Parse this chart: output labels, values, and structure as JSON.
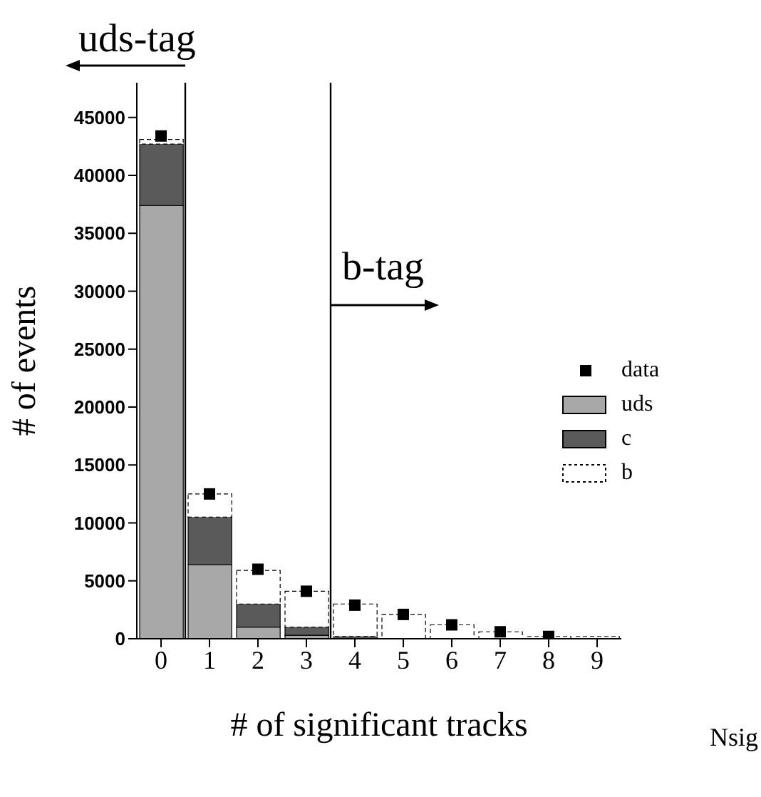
{
  "chart_data": {
    "type": "bar",
    "stacked": true,
    "xlabel": "# of significant tracks",
    "ylabel": "# of events",
    "x": [
      0,
      1,
      2,
      3,
      4,
      5,
      6,
      7,
      8,
      9
    ],
    "xlim": [
      -0.5,
      9.5
    ],
    "xticks": [
      0,
      1,
      2,
      3,
      4,
      5,
      6,
      7,
      8,
      9
    ],
    "ylim": [
      0,
      48000
    ],
    "yticks": [
      0,
      5000,
      10000,
      15000,
      20000,
      25000,
      30000,
      35000,
      40000,
      45000
    ],
    "series": [
      {
        "name": "data",
        "type": "scatter",
        "color": "#000000",
        "marker": "square",
        "values": [
          43400,
          12500,
          6000,
          4100,
          2900,
          2100,
          1200,
          600,
          200,
          null
        ]
      },
      {
        "name": "uds",
        "color": "#a8a8a8",
        "values": [
          37400,
          6400,
          1000,
          300,
          0,
          0,
          0,
          0,
          0,
          0
        ]
      },
      {
        "name": "c",
        "color": "#5a5a5a",
        "values": [
          5300,
          4100,
          2000,
          700,
          200,
          0,
          0,
          0,
          0,
          0
        ]
      },
      {
        "name": "b",
        "color": "#ffffff",
        "values": [
          400,
          2000,
          2900,
          3100,
          2800,
          2100,
          1200,
          600,
          200,
          200
        ]
      }
    ],
    "ref_lines": [
      {
        "axis": "x",
        "value": 0.5,
        "label": "uds-tag"
      },
      {
        "axis": "x",
        "value": 3.5,
        "label": "b-tag"
      }
    ],
    "annotations": [
      "Nsig"
    ],
    "legend": "right",
    "grid": false
  }
}
